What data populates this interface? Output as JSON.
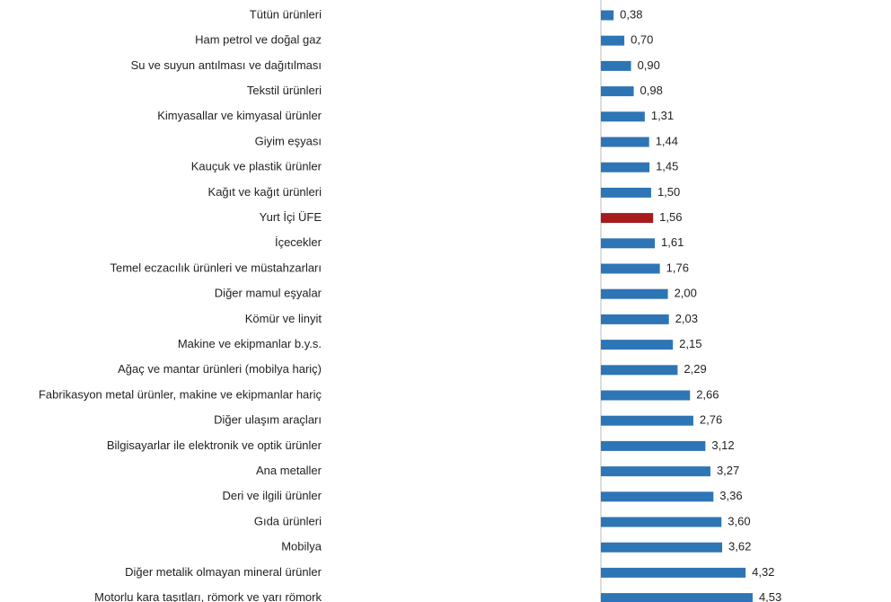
{
  "chart_data": {
    "type": "hbar",
    "categories": [
      "Tütün ürünleri",
      "Ham petrol ve doğal gaz",
      "Su ve suyun antılması ve dağıtılması",
      "Tekstil ürünleri",
      "Kimyasallar ve kimyasal ürünler",
      "Giyim eşyası",
      "Kauçuk ve plastik ürünler",
      "Kağıt ve kağıt ürünleri",
      "Yurt İçi ÜFE",
      "İçecekler",
      "Temel eczacılık ürünleri ve müstahzarları",
      "Diğer mamul eşyalar",
      "Kömür ve linyit",
      "Makine ve ekipmanlar b.y.s.",
      "Ağaç ve mantar ürünleri (mobilya hariç)",
      "Fabrikasyon metal ürünler, makine ve ekipmanlar hariç",
      "Diğer ulaşım araçları",
      "Bilgisayarlar ile elektronik ve optik ürünler",
      "Ana metaller",
      "Deri ve ilgili ürünler",
      "Gıda ürünleri",
      "Mobilya",
      "Diğer metalik olmayan mineral ürünler",
      "Motorlu kara taşıtları, römork ve yarı römork"
    ],
    "values": [
      0.38,
      0.7,
      0.9,
      0.98,
      1.31,
      1.44,
      1.45,
      1.5,
      1.56,
      1.61,
      1.76,
      2.0,
      2.03,
      2.15,
      2.29,
      2.66,
      2.76,
      3.12,
      3.27,
      3.36,
      3.6,
      3.62,
      4.32,
      4.53
    ],
    "value_labels": [
      "0,38",
      "0,70",
      "0,90",
      "0,98",
      "1,31",
      "1,44",
      "1,45",
      "1,50",
      "1,56",
      "1,61",
      "1,76",
      "2,00",
      "2,03",
      "2,15",
      "2,29",
      "2,66",
      "2,76",
      "3,12",
      "3,27",
      "3,36",
      "3,60",
      "3,62",
      "4,32",
      "4,53"
    ],
    "colors": [
      "#2e75b6",
      "#2e75b6",
      "#2e75b6",
      "#2e75b6",
      "#2e75b6",
      "#2e75b6",
      "#2e75b6",
      "#2e75b6",
      "#a61c1c",
      "#2e75b6",
      "#2e75b6",
      "#2e75b6",
      "#2e75b6",
      "#2e75b6",
      "#2e75b6",
      "#2e75b6",
      "#2e75b6",
      "#2e75b6",
      "#2e75b6",
      "#2e75b6",
      "#2e75b6",
      "#2e75b6",
      "#2e75b6",
      "#2e75b6"
    ],
    "xlim": [
      0,
      8.5
    ]
  }
}
